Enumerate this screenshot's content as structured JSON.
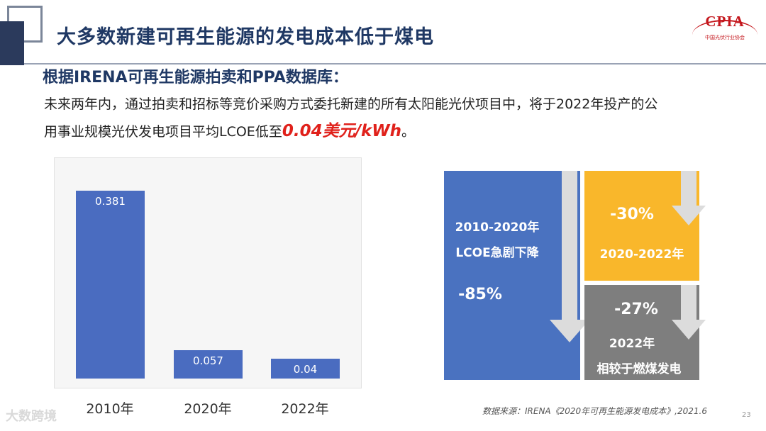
{
  "slide": {
    "title": "大多数新建可再生能源的发电成本低于煤电",
    "subtitle": "根据IRENA可再生能源拍卖和PPA数据库：",
    "body_line1": "未来两年内，通过拍卖和招标等竞价采购方式委托新建的所有太阳能光伏项目中，将于2022年投产的公",
    "body_line2_prefix": "用事业规模光伏发电项目平均LCOE低至",
    "body_highlight": "0.04美元/kWh",
    "body_suffix": "。",
    "source": "数据来源：IRENA《2020年可再生能源发电成本》,2021.6",
    "page_number": "23",
    "watermark": "大数跨境"
  },
  "logo": {
    "text": "CPIA",
    "subtext": "中国光伏行业协会",
    "color": "#c4161c"
  },
  "chart_data": {
    "type": "bar",
    "categories": [
      "2010年",
      "2020年",
      "2022年"
    ],
    "values": [
      0.381,
      0.057,
      0.04
    ],
    "value_labels": [
      "0.381",
      "0.057",
      "0.04"
    ],
    "ylim": [
      0,
      0.41
    ],
    "bar_color": "#4a6cc0",
    "grid": false
  },
  "infographic": {
    "blue": {
      "line1": "2010-2020年",
      "line2": "LCOE急剧下降",
      "percent": "-85%",
      "color": "#4a72c0"
    },
    "yellow": {
      "percent": "-30%",
      "line1": "2020-2022年",
      "color": "#f9b72b"
    },
    "gray": {
      "percent": "-27%",
      "line1": "2022年",
      "line2": "相较于燃煤发电",
      "color": "#7e7e7e"
    }
  }
}
